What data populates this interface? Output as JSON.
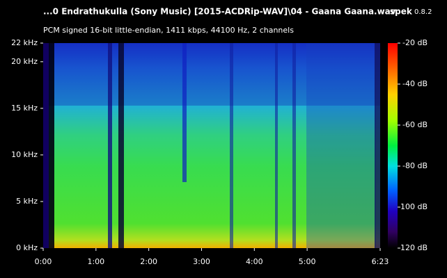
{
  "chart_data": {
    "type": "spectrogram",
    "title": "...0 Endrathukulla (Sony Music) [2015-ACDRip-WAV]\\04 - Gaana Gaana.wav",
    "app_name": "spek",
    "app_version": "0.8.2",
    "subtitle": "PCM signed 16-bit little-endian, 1411 kbps, 44100 Hz, 2 channels",
    "xlim": [
      0,
      383
    ],
    "xticks": [
      {
        "value": 0,
        "label": "0:00"
      },
      {
        "value": 60,
        "label": "1:00"
      },
      {
        "value": 120,
        "label": "2:00"
      },
      {
        "value": 180,
        "label": "3:00"
      },
      {
        "value": 240,
        "label": "4:00"
      },
      {
        "value": 300,
        "label": "5:00"
      },
      {
        "value": 383,
        "label": "6:23"
      }
    ],
    "ylim": [
      0,
      22
    ],
    "yticks": [
      {
        "value": 0,
        "label": "0 kHz"
      },
      {
        "value": 5,
        "label": "5 kHz"
      },
      {
        "value": 10,
        "label": "10 kHz"
      },
      {
        "value": 15,
        "label": "15 kHz"
      },
      {
        "value": 20,
        "label": "20 kHz"
      },
      {
        "value": 22,
        "label": "22 kHz"
      }
    ],
    "colorbar_lim": [
      -120,
      -20
    ],
    "colorbar_ticks": [
      {
        "value": -20,
        "label": "-20 dB"
      },
      {
        "value": -40,
        "label": "-40 dB"
      },
      {
        "value": -60,
        "label": "-60 dB"
      },
      {
        "value": -80,
        "label": "-80 dB"
      },
      {
        "value": -100,
        "label": "-100 dB"
      },
      {
        "value": -120,
        "label": "-120 dB"
      }
    ]
  }
}
